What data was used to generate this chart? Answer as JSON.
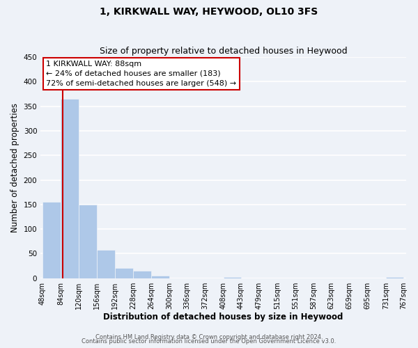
{
  "title": "1, KIRKWALL WAY, HEYWOOD, OL10 3FS",
  "subtitle": "Size of property relative to detached houses in Heywood",
  "xlabel": "Distribution of detached houses by size in Heywood",
  "ylabel": "Number of detached properties",
  "bar_edges": [
    48,
    84,
    120,
    156,
    192,
    228,
    264,
    300,
    336,
    372,
    408,
    443,
    479,
    515,
    551,
    587,
    623,
    659,
    695,
    731,
    767
  ],
  "bar_heights": [
    155,
    365,
    150,
    58,
    21,
    15,
    5,
    0,
    0,
    0,
    3,
    0,
    0,
    0,
    0,
    0,
    0,
    0,
    0,
    3
  ],
  "bar_color": "#aec8e8",
  "property_line_x": 88,
  "property_line_color": "#cc0000",
  "annotation_title": "1 KIRKWALL WAY: 88sqm",
  "annotation_line1": "← 24% of detached houses are smaller (183)",
  "annotation_line2": "72% of semi-detached houses are larger (548) →",
  "annotation_box_color": "#ffffff",
  "annotation_box_edge": "#cc0000",
  "ylim": [
    0,
    450
  ],
  "tick_labels": [
    "48sqm",
    "84sqm",
    "120sqm",
    "156sqm",
    "192sqm",
    "228sqm",
    "264sqm",
    "300sqm",
    "336sqm",
    "372sqm",
    "408sqm",
    "443sqm",
    "479sqm",
    "515sqm",
    "551sqm",
    "587sqm",
    "623sqm",
    "659sqm",
    "695sqm",
    "731sqm",
    "767sqm"
  ],
  "footer1": "Contains HM Land Registry data © Crown copyright and database right 2024.",
  "footer2": "Contains public sector information licensed under the Open Government Licence v3.0.",
  "bg_color": "#eef2f8",
  "grid_color": "#ffffff",
  "title_fontsize": 10,
  "subtitle_fontsize": 9,
  "axis_label_fontsize": 8.5,
  "tick_fontsize": 7,
  "annotation_fontsize": 8,
  "footer_fontsize": 6
}
